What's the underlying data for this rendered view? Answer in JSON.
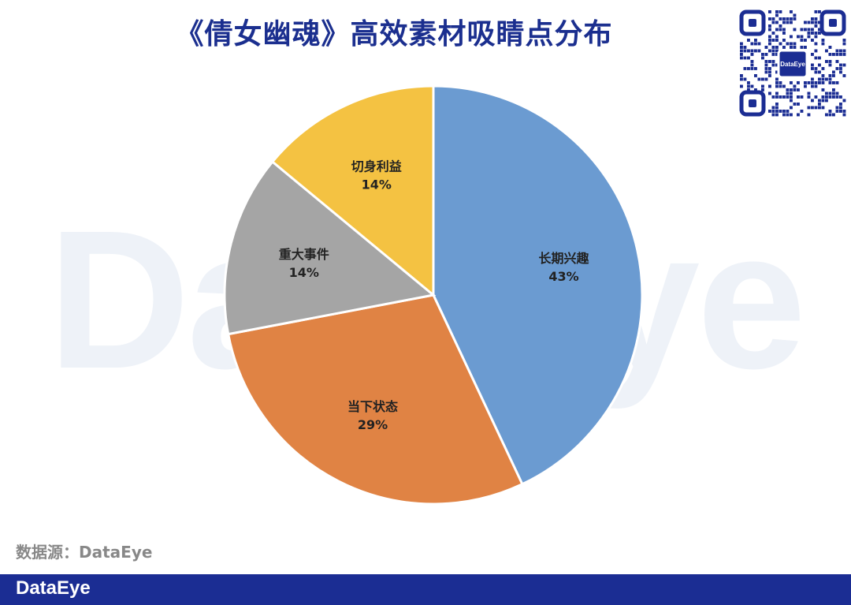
{
  "header": {
    "title": "《倩女幽魂》高效素材吸睛点分布"
  },
  "watermark": {
    "text": "DataEye"
  },
  "qr": {
    "badge": "DataEye"
  },
  "chart_data": {
    "type": "pie",
    "title": "《倩女幽魂》高效素材吸睛点分布",
    "start": "12 o'clock, clockwise",
    "slices": [
      {
        "label": "长期兴趣",
        "value": 43,
        "pct": "43%",
        "color": "#6b9bd1"
      },
      {
        "label": "当下状态",
        "value": 29,
        "pct": "29%",
        "color": "#e08344"
      },
      {
        "label": "重大事件",
        "value": 14,
        "pct": "14%",
        "color": "#a5a5a5"
      },
      {
        "label": "切身利益",
        "value": 14,
        "pct": "14%",
        "color": "#f4c242"
      }
    ]
  },
  "source": {
    "text": "数据源：DataEye"
  },
  "footer": {
    "brand": "DataEye"
  }
}
